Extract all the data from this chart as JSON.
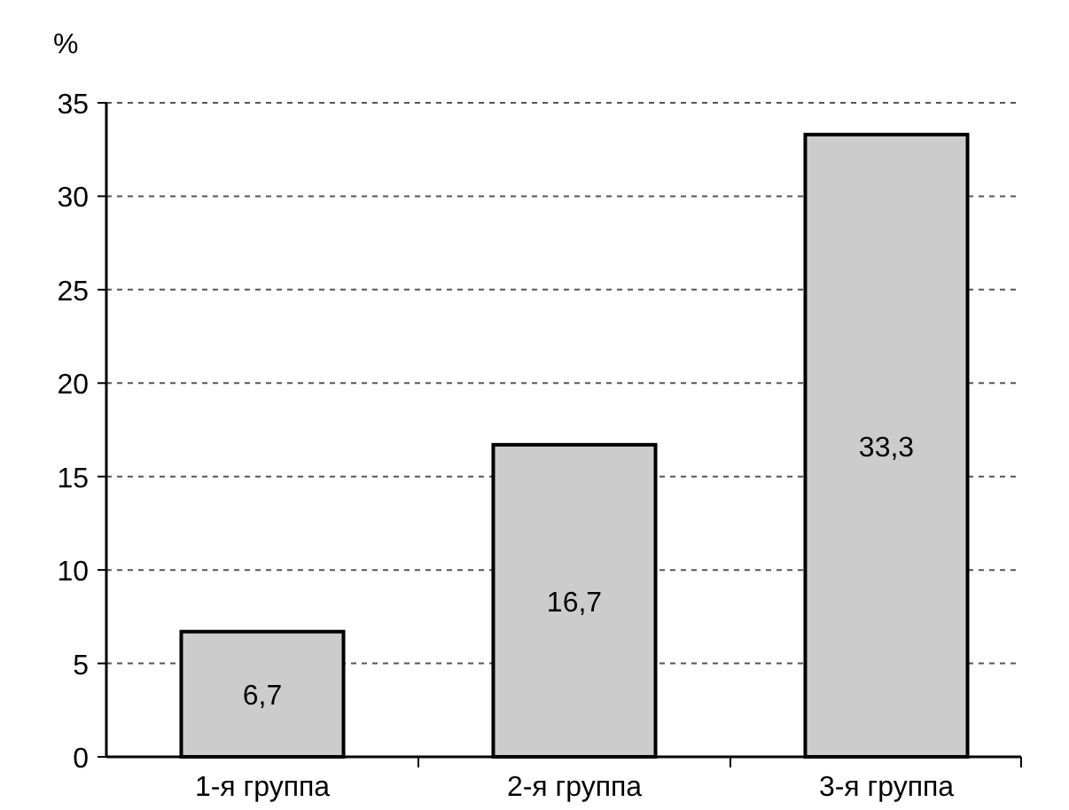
{
  "chart_data": {
    "type": "bar",
    "ylabel": "%",
    "categories": [
      "1-я группа",
      "2-я группа",
      "3-я группа"
    ],
    "values": [
      6.7,
      16.7,
      33.3
    ],
    "color": "#cccccc",
    "value_labels": [
      "6,7",
      "16,7",
      "33,3"
    ],
    "ylim": [
      0,
      35
    ],
    "yticks": [
      0,
      5,
      10,
      15,
      20,
      25,
      30,
      35
    ],
    "grid": "y"
  }
}
